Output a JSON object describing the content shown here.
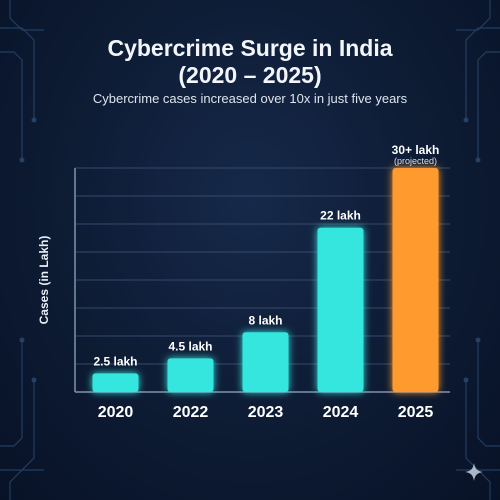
{
  "title_line1": "Cybercrime Surge in India",
  "title_line2": "(2020 – 2025)",
  "subtitle": "Cybercrime cases increased over 10x in just five years",
  "chart_data": {
    "type": "bar",
    "categories": [
      "2020",
      "2022",
      "2023",
      "2024",
      "2025"
    ],
    "values": [
      2.5,
      4.5,
      8,
      22,
      30
    ],
    "value_labels": [
      "2.5 lakh",
      "4.5 lakh",
      "8 lakh",
      "22 lakh",
      "30+ lakh"
    ],
    "annotations": [
      "",
      "",
      "",
      "",
      "(projected)"
    ],
    "ylabel": "Cases (in Lakh)",
    "xlabel": "",
    "grid": true,
    "colors": [
      "#35e6df",
      "#35e6df",
      "#35e6df",
      "#35e6df",
      "#ff9a2e"
    ]
  },
  "sparkle_icon": "sparkle-icon"
}
